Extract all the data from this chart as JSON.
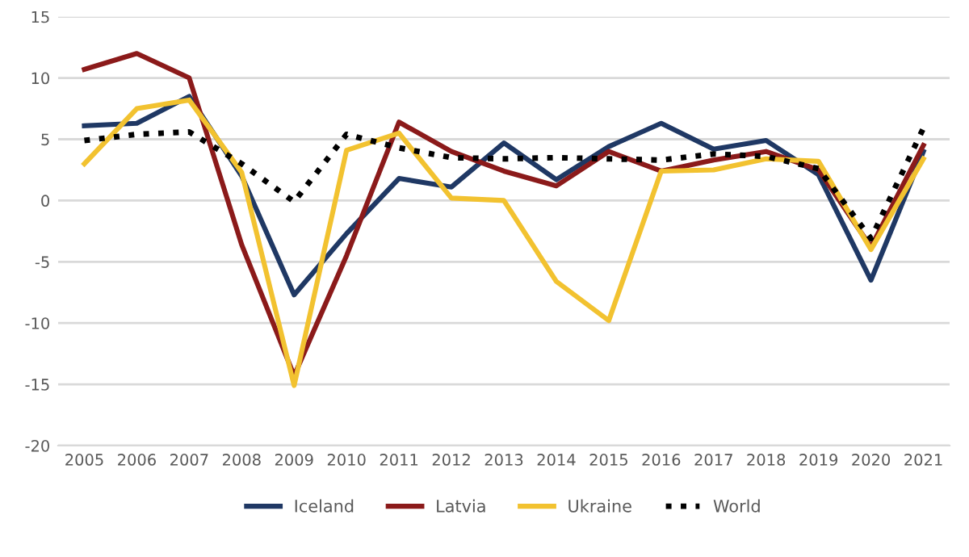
{
  "chart_data": {
    "type": "line",
    "categories": [
      "2005",
      "2006",
      "2007",
      "2008",
      "2009",
      "2010",
      "2011",
      "2012",
      "2013",
      "2014",
      "2015",
      "2016",
      "2017",
      "2018",
      "2019",
      "2020",
      "2021"
    ],
    "series": [
      {
        "name": "Iceland",
        "color": "#1f3864",
        "values": [
          6.1,
          6.3,
          8.5,
          2.0,
          -7.7,
          -2.7,
          1.8,
          1.1,
          4.7,
          1.7,
          4.4,
          6.3,
          4.2,
          4.9,
          2.1,
          -6.5,
          4.0
        ]
      },
      {
        "name": "Latvia",
        "color": "#8b1a1a",
        "values": [
          10.7,
          12.0,
          10.0,
          -3.6,
          -14.3,
          -4.5,
          6.4,
          4.0,
          2.4,
          1.2,
          4.0,
          2.4,
          3.3,
          4.0,
          2.5,
          -3.8,
          4.5
        ]
      },
      {
        "name": "Ukraine",
        "color": "#f2c230",
        "values": [
          3.0,
          7.5,
          8.2,
          2.3,
          -15.1,
          4.1,
          5.5,
          0.2,
          0.0,
          -6.6,
          -9.8,
          2.4,
          2.5,
          3.4,
          3.2,
          -4.0,
          3.4
        ]
      },
      {
        "name": "World",
        "color": "#000000",
        "line_style": "dotted",
        "values": [
          4.9,
          5.4,
          5.6,
          3.0,
          -0.1,
          5.4,
          4.3,
          3.5,
          3.4,
          3.5,
          3.4,
          3.3,
          3.8,
          3.6,
          2.6,
          -3.1,
          5.9
        ]
      }
    ],
    "ylim": [
      -20,
      15
    ],
    "yticks": [
      -20,
      -15,
      -10,
      -5,
      0,
      5,
      10,
      15
    ],
    "grid": "y",
    "legend": "bottom",
    "line_style": "solid"
  }
}
